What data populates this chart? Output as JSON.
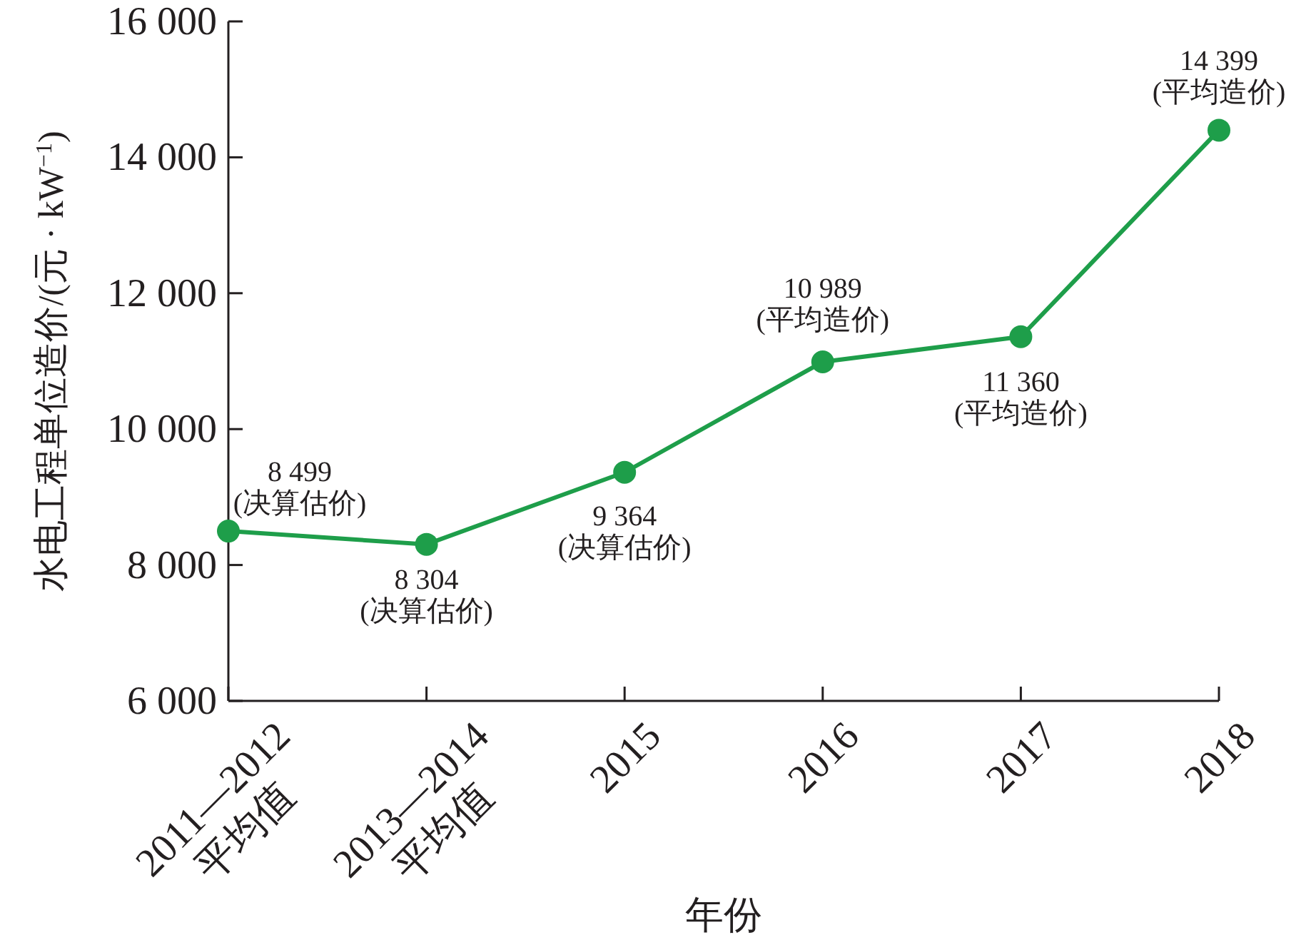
{
  "chart_data": {
    "type": "line",
    "xlabel": "年份",
    "ylabel": "水电工程单位造价/(元 · kW$^{−1}$)",
    "categories": [
      "2011—2012\n平均值",
      "2013—2014\n平均值",
      "2015",
      "2016",
      "2017",
      "2018"
    ],
    "series": [
      {
        "color": "#1e9e4a",
        "values": [
          8499,
          8304,
          9364,
          10989,
          11360,
          14399
        ],
        "value_labels": [
          "8 499\n(决算估价)",
          "8 304\n(决算估价)",
          "9 364\n(决算估价)",
          "10 989\n(平均造价)",
          "11 360\n(平均造价)",
          "14 399\n(平均造价)"
        ]
      }
    ],
    "ylim": [
      6000,
      16000
    ],
    "yticks": [
      {
        "value": 6000,
        "label": "6 000"
      },
      {
        "value": 8000,
        "label": "8 000"
      },
      {
        "value": 10000,
        "label": "10 000"
      },
      {
        "value": 12000,
        "label": "12 000"
      },
      {
        "value": 14000,
        "label": "14 000"
      },
      {
        "value": 16000,
        "label": "16 000"
      }
    ],
    "marker": "circle",
    "line_style": "solid"
  }
}
